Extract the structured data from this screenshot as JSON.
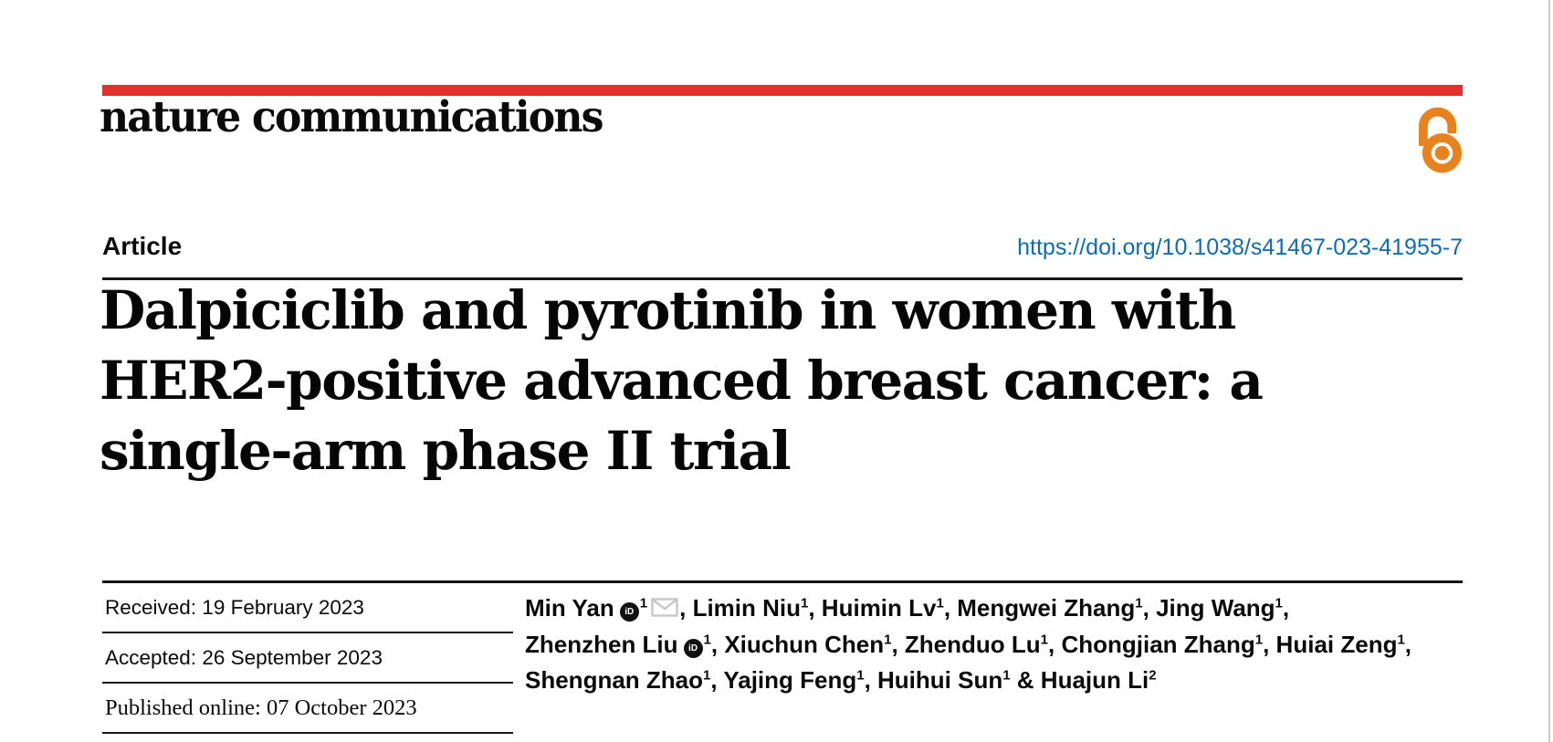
{
  "journal": {
    "logo_text": "nature communications",
    "open_access_icon": "open padlock",
    "colors": {
      "brand_red": "#e2312a",
      "oa_orange": "#e8821e",
      "link_blue": "#0e6cb4"
    }
  },
  "header": {
    "article_label": "Article",
    "doi_link": "https://doi.org/10.1038/s41467-023-41955-7"
  },
  "title_lines": [
    "Dalpiciclib and pyrotinib in women with",
    "HER2-positive advanced breast cancer: a",
    "single-arm phase II trial"
  ],
  "dates": {
    "received": "Received: 19 February 2023",
    "accepted": "Accepted: 26 September 2023",
    "published": "Published online: 07 October 2023"
  },
  "authors": {
    "lines": [
      [
        {
          "t": "Min Yan"
        },
        {
          "icon": "orcid"
        },
        {
          "sup": "1"
        },
        {
          "icon": "envelope"
        },
        {
          "t": ", Limin Niu"
        },
        {
          "sup": "1"
        },
        {
          "t": ", Huimin Lv"
        },
        {
          "sup": "1"
        },
        {
          "t": ", Mengwei Zhang"
        },
        {
          "sup": "1"
        },
        {
          "t": ", Jing Wang"
        },
        {
          "sup": "1"
        },
        {
          "t": ","
        }
      ],
      [
        {
          "t": "Zhenzhen Liu"
        },
        {
          "icon": "orcid"
        },
        {
          "sup": "1"
        },
        {
          "t": ", Xiuchun Chen"
        },
        {
          "sup": "1"
        },
        {
          "t": ", Zhenduo Lu"
        },
        {
          "sup": "1"
        },
        {
          "t": ", Chongjian Zhang"
        },
        {
          "sup": "1"
        },
        {
          "t": ", Huiai Zeng"
        },
        {
          "sup": "1"
        },
        {
          "t": ","
        }
      ],
      [
        {
          "t": "Shengnan Zhao"
        },
        {
          "sup": "1"
        },
        {
          "t": ", Yajing Feng"
        },
        {
          "sup": "1"
        },
        {
          "t": ", Huihui Sun"
        },
        {
          "sup": "1"
        },
        {
          "t": " & Huajun Li"
        },
        {
          "sup": "2"
        }
      ]
    ]
  }
}
